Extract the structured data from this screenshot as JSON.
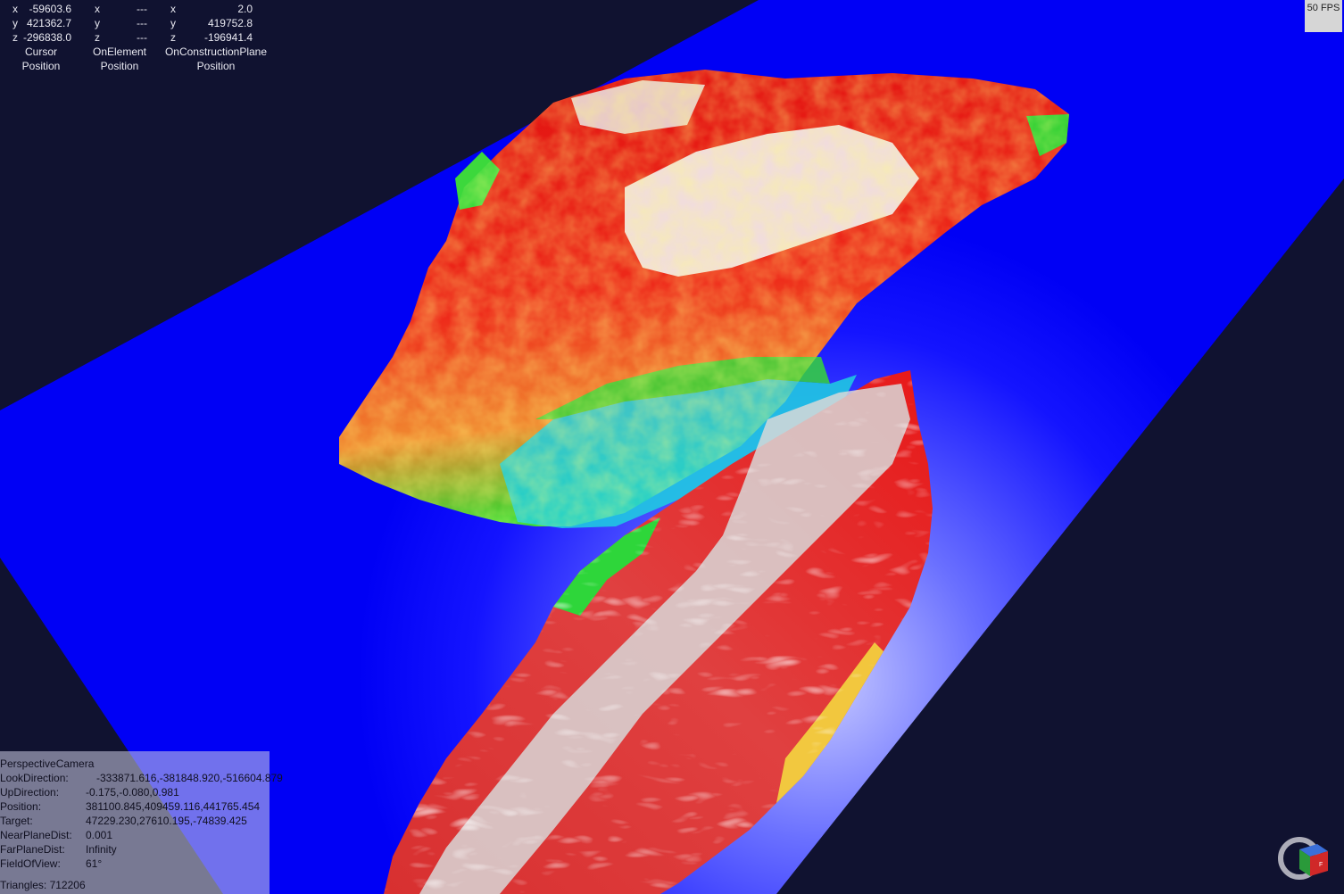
{
  "cursor_readout": {
    "columns": [
      {
        "rows": [
          {
            "axis": "x",
            "value": "-59603.6"
          },
          {
            "axis": "y",
            "value": "421362.7"
          },
          {
            "axis": "z",
            "value": "-296838.0"
          }
        ],
        "caption_line1": "Cursor",
        "caption_line2": "Position"
      },
      {
        "rows": [
          {
            "axis": "x",
            "value": "---"
          },
          {
            "axis": "y",
            "value": "---"
          },
          {
            "axis": "z",
            "value": "---"
          }
        ],
        "caption_line1": "OnElement",
        "caption_line2": "Position"
      },
      {
        "rows": [
          {
            "axis": "x",
            "value": "2.0"
          },
          {
            "axis": "y",
            "value": "419752.8"
          },
          {
            "axis": "z",
            "value": "-196941.4"
          }
        ],
        "caption_line1": "OnConstructionPlane",
        "caption_line2": "Position"
      }
    ]
  },
  "fps_label": "50 FPS",
  "camera": {
    "title": "PerspectiveCamera",
    "fields": [
      {
        "label": "LookDirection:",
        "value": "-333871.616,-381848.920,-516604.879"
      },
      {
        "label": "UpDirection:",
        "value": "-0.175,-0.080,0.981"
      },
      {
        "label": "Position:",
        "value": "381100.845,409459.116,441765.454"
      },
      {
        "label": "Target:",
        "value": "47229.230,27610.195,-74839.425"
      },
      {
        "label": "NearPlaneDist:",
        "value": "0.001"
      },
      {
        "label": "FarPlaneDist:",
        "value": "Infinity"
      },
      {
        "label": "FieldOfView:",
        "value": "61°"
      }
    ],
    "triangles": "Triangles: 712206"
  },
  "colors": {
    "background": "#101230",
    "plane": "#0000ff",
    "terrain_low": "#00e5ff",
    "terrain_mid": "#00e000",
    "terrain_high": "#e00000",
    "terrain_peak": "#f4f4f4"
  },
  "view_cube_icon": "view-cube-icon"
}
